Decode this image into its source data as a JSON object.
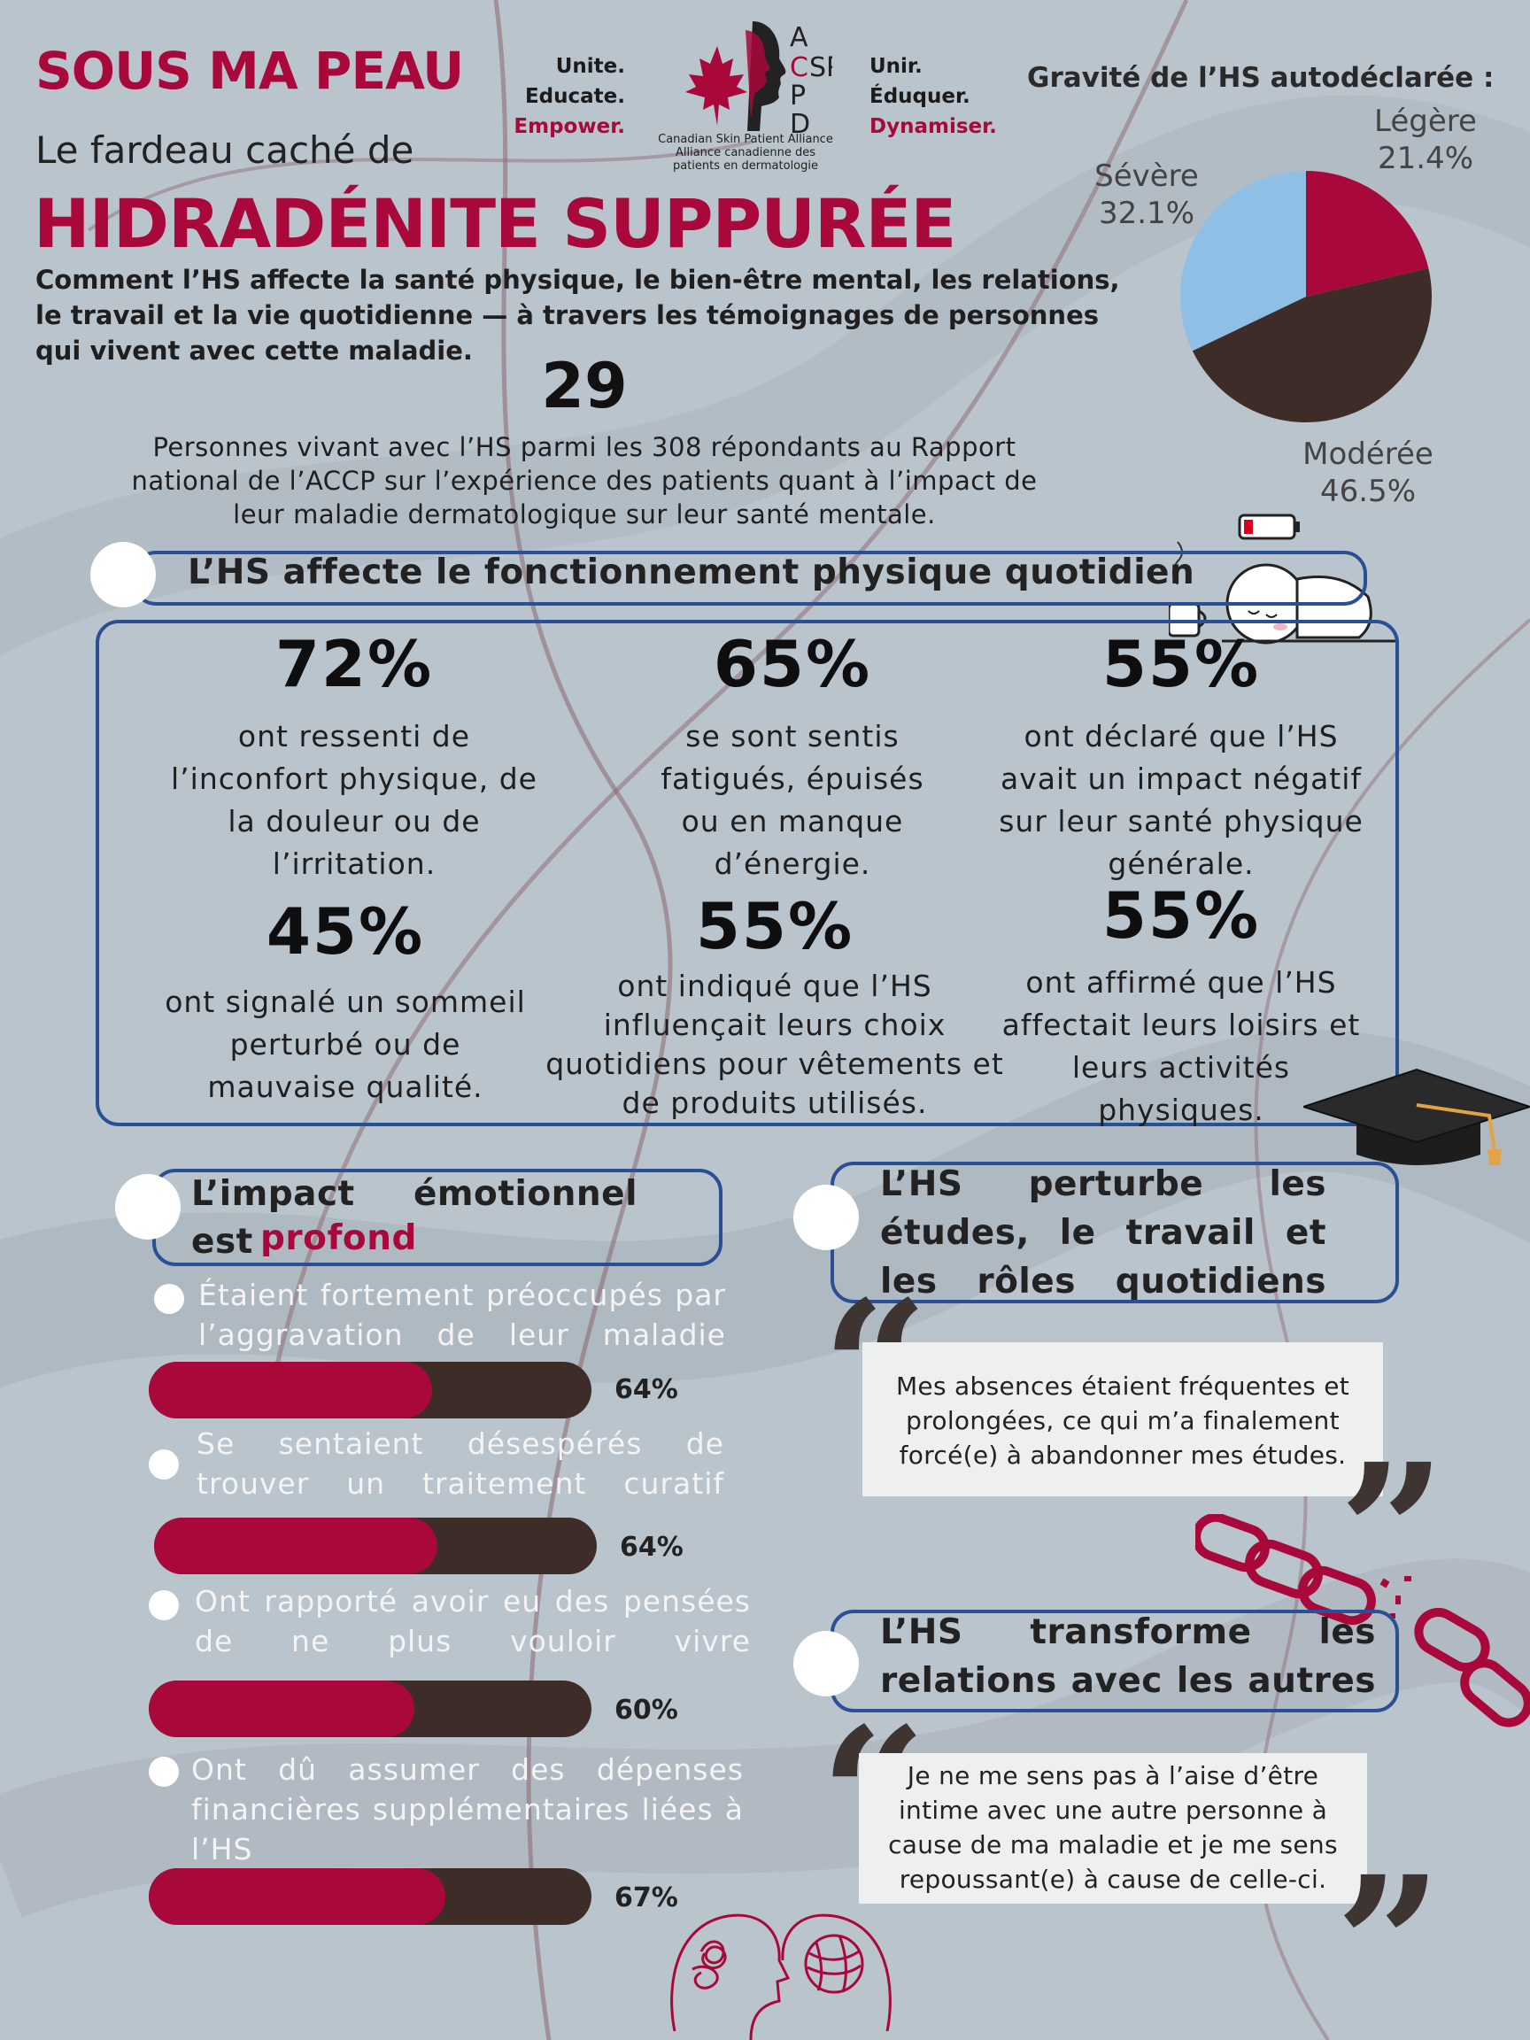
{
  "header": {
    "title_small": "SOUS MA PEAU",
    "subtitle": "Le fardeau caché de",
    "title_big": "HIDRADÉNITE SUPPURÉE",
    "intro": "Comment l’HS affecte la santé physique, le bien-être mental, les relations, le travail et la vie quotidienne — à travers les témoignages de personnes qui vivent avec cette maladie."
  },
  "logo": {
    "tag_en": [
      "Unite.",
      "Educate.",
      "Empower."
    ],
    "tag_fr": [
      "Unir.",
      "Éduquer.",
      "Dynamiser."
    ],
    "letters_top": "CSPA",
    "letters_side": [
      "A",
      "C",
      "P",
      "D"
    ],
    "caption_en": "Canadian Skin Patient Alliance",
    "caption_fr": "Alliance canadienne des patients en dermatologie",
    "brand_color": "#a8083a"
  },
  "respondents": {
    "number": "29",
    "description": "Personnes vivant avec l’HS parmi les 308 répondants au Rapport national de l’ACCP sur l’expérience des patients quant à l’impact de leur maladie dermatologique sur leur santé mentale."
  },
  "chart_data": {
    "type": "pie",
    "title": "Gravité de l’HS autodéclarée :",
    "slices": [
      {
        "name": "Légère",
        "value": 21.4,
        "label": "21.4%",
        "color": "#a8083a"
      },
      {
        "name": "Modérée",
        "value": 46.5,
        "label": "46.5%",
        "color": "#3e2c28"
      },
      {
        "name": "Sévère",
        "value": 32.1,
        "label": "32.1%",
        "color": "#90bfe6"
      }
    ]
  },
  "physical": {
    "title": "L’HS affecte le fonctionnement physique quotidien",
    "stats": [
      {
        "pct": "72%",
        "text": "ont ressenti de l’inconfort physique, de la douleur ou de l’irritation."
      },
      {
        "pct": "65%",
        "text": "se sont sentis fatigués, épuisés ou en manque d’énergie."
      },
      {
        "pct": "55%",
        "text": "ont déclaré que l’HS avait un impact négatif sur leur santé physique générale."
      },
      {
        "pct": "45%",
        "text": "ont signalé un sommeil perturbé ou de mauvaise qualité."
      },
      {
        "pct": "55%",
        "text": "ont indiqué que l’HS influençait leurs choix quotidiens pour vêtements et de produits utilisés."
      },
      {
        "pct": "55%",
        "text": "ont affirmé que l’HS affectait leurs loisirs et leurs activités physiques."
      }
    ]
  },
  "emotional": {
    "title_part1": "L’impact émotionnel est",
    "title_highlight": "profond",
    "bars": [
      {
        "label": "Étaient fortement préoccupés par l’aggravation de leur maladie",
        "pct_label": "64%",
        "value": 64
      },
      {
        "label": "Se sentaient désespérés de trouver un traitement curatif",
        "pct_label": "64%",
        "value": 64
      },
      {
        "label": "Ont rapporté avoir eu des pensées de ne plus vouloir vivre",
        "pct_label": "60%",
        "value": 60
      },
      {
        "label": "Ont dû assumer des dépenses financières supplémentaires liées à l’HS",
        "pct_label": "67%",
        "value": 67
      }
    ]
  },
  "studies": {
    "title": "L’HS perturbe les études, le travail et les rôles quotidiens",
    "quote": "Mes absences étaient fréquentes et prolongées, ce qui m’a finalement forcé(e) à abandonner mes études."
  },
  "relations": {
    "title": "L’HS transforme les relations avec les autres",
    "quote": "Je ne me sens pas à l’aise d’être intime avec une autre personne à cause de ma maladie et je me sens repoussant(e) à cause de celle-ci."
  },
  "quote_marks": {
    "open": "“",
    "close": "”"
  }
}
